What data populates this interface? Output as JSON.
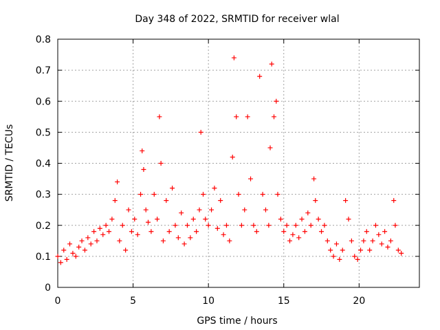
{
  "chart_data": {
    "type": "scatter",
    "title": "Day 348 of 2022, SRMTID for receiver wlal",
    "xlabel": "GPS time / hours",
    "ylabel": "SRMTID / TECUs",
    "xlim": [
      0,
      24
    ],
    "ylim": [
      0,
      0.8
    ],
    "x_ticks": [
      0,
      5,
      10,
      15,
      20
    ],
    "x_tick_labels": [
      "0",
      "5",
      "10",
      "15",
      "20"
    ],
    "y_ticks": [
      0,
      0.1,
      0.2,
      0.3,
      0.4,
      0.5,
      0.6,
      0.7,
      0.8
    ],
    "y_tick_labels": [
      "0",
      "0.1",
      "0.2",
      "0.3",
      "0.4",
      "0.5",
      "0.6",
      "0.7",
      "0.8"
    ],
    "grid": true,
    "marker": "+",
    "marker_color": "#ff0000",
    "series": [
      {
        "name": "SRMTID",
        "x": [
          0.0,
          0.2,
          0.4,
          0.6,
          0.8,
          1.0,
          1.2,
          1.4,
          1.6,
          1.8,
          2.0,
          2.2,
          2.4,
          2.6,
          2.8,
          3.0,
          3.2,
          3.4,
          3.6,
          3.8,
          3.95,
          4.1,
          4.3,
          4.5,
          4.7,
          4.9,
          5.1,
          5.3,
          5.5,
          5.6,
          5.7,
          5.85,
          6.0,
          6.2,
          6.4,
          6.6,
          6.75,
          6.85,
          7.0,
          7.2,
          7.4,
          7.6,
          7.8,
          8.0,
          8.2,
          8.4,
          8.6,
          8.8,
          9.0,
          9.2,
          9.4,
          9.5,
          9.65,
          9.8,
          10.0,
          10.2,
          10.4,
          10.6,
          10.8,
          11.0,
          11.2,
          11.4,
          11.6,
          11.7,
          11.85,
          12.0,
          12.2,
          12.4,
          12.6,
          12.8,
          13.0,
          13.2,
          13.4,
          13.6,
          13.8,
          14.0,
          14.1,
          14.2,
          14.35,
          14.5,
          14.6,
          14.8,
          15.0,
          15.2,
          15.4,
          15.6,
          15.8,
          16.0,
          16.2,
          16.4,
          16.6,
          16.8,
          17.0,
          17.1,
          17.3,
          17.5,
          17.7,
          17.9,
          18.1,
          18.3,
          18.5,
          18.7,
          18.9,
          19.1,
          19.3,
          19.5,
          19.7,
          19.9,
          20.1,
          20.3,
          20.5,
          20.7,
          20.9,
          21.1,
          21.3,
          21.5,
          21.7,
          21.9,
          22.1,
          22.3,
          22.4,
          22.6,
          22.8
        ],
        "y": [
          0.1,
          0.08,
          0.12,
          0.09,
          0.14,
          0.11,
          0.1,
          0.13,
          0.15,
          0.12,
          0.16,
          0.14,
          0.18,
          0.15,
          0.19,
          0.17,
          0.2,
          0.18,
          0.22,
          0.28,
          0.34,
          0.15,
          0.2,
          0.12,
          0.25,
          0.18,
          0.22,
          0.17,
          0.3,
          0.44,
          0.38,
          0.25,
          0.21,
          0.18,
          0.3,
          0.22,
          0.55,
          0.4,
          0.15,
          0.28,
          0.18,
          0.32,
          0.2,
          0.16,
          0.24,
          0.14,
          0.2,
          0.16,
          0.22,
          0.18,
          0.25,
          0.5,
          0.3,
          0.22,
          0.2,
          0.25,
          0.32,
          0.19,
          0.28,
          0.17,
          0.2,
          0.15,
          0.42,
          0.74,
          0.55,
          0.3,
          0.2,
          0.25,
          0.55,
          0.35,
          0.2,
          0.18,
          0.68,
          0.3,
          0.25,
          0.2,
          0.45,
          0.72,
          0.55,
          0.6,
          0.3,
          0.22,
          0.18,
          0.2,
          0.15,
          0.17,
          0.2,
          0.16,
          0.22,
          0.18,
          0.24,
          0.2,
          0.35,
          0.28,
          0.22,
          0.18,
          0.2,
          0.15,
          0.12,
          0.1,
          0.14,
          0.09,
          0.12,
          0.28,
          0.22,
          0.15,
          0.1,
          0.09,
          0.12,
          0.15,
          0.18,
          0.12,
          0.15,
          0.2,
          0.17,
          0.14,
          0.18,
          0.13,
          0.15,
          0.28,
          0.2,
          0.12,
          0.11
        ]
      }
    ]
  }
}
